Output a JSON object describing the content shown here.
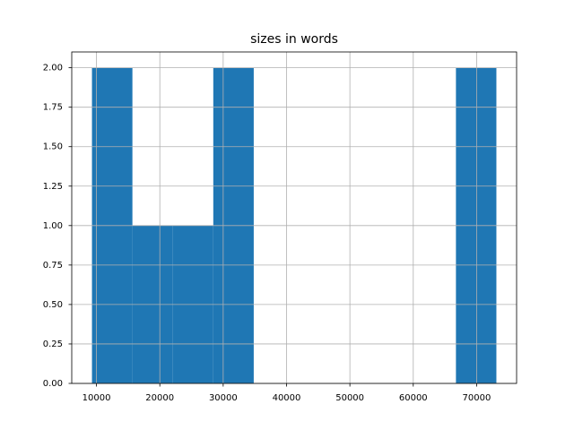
{
  "chart_data": {
    "type": "histogram",
    "title": "sizes in words",
    "bins": [
      9290,
      15673,
      22056,
      28439,
      34822,
      41205,
      47588,
      53971,
      60354,
      66737,
      73120
    ],
    "values": [
      2,
      1,
      1,
      2,
      0,
      0,
      0,
      0,
      0,
      2
    ],
    "color": "#1f77b4",
    "xlim": [
      6099,
      76311
    ],
    "xticks": [
      10000,
      20000,
      30000,
      40000,
      50000,
      60000,
      70000
    ],
    "ylim": [
      0,
      2.1
    ],
    "yticks": [
      {
        "value": 0,
        "label": "0.00"
      },
      {
        "value": 0.25,
        "label": "0.25"
      },
      {
        "value": 0.5,
        "label": "0.50"
      },
      {
        "value": 0.75,
        "label": "0.75"
      },
      {
        "value": 1,
        "label": "1.00"
      },
      {
        "value": 1.25,
        "label": "1.25"
      },
      {
        "value": 1.5,
        "label": "1.50"
      },
      {
        "value": 1.75,
        "label": "1.75"
      },
      {
        "value": 2,
        "label": "2.00"
      }
    ],
    "grid": true
  }
}
